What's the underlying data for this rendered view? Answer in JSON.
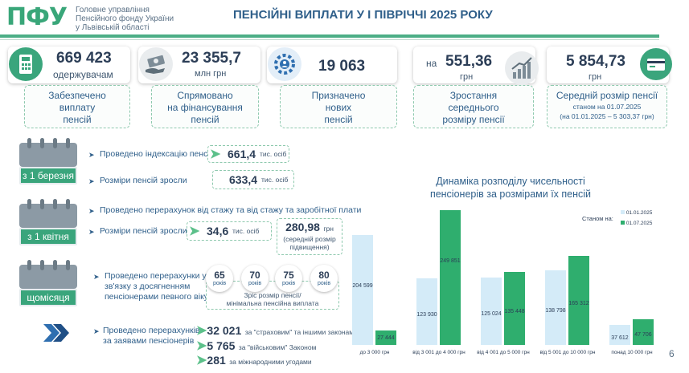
{
  "header": {
    "logo": "ПФУ",
    "org_lines": [
      "Головне управління",
      "Пенсійного фонду України",
      "у Львівській області"
    ],
    "title": "ПЕНСІЙНІ ВИПЛАТИ У І ПІВРІЧЧІ 2025 РОКУ"
  },
  "cards": [
    {
      "value": "669 423",
      "unit": "одержувачам",
      "desc": [
        "Забезпечено",
        "виплату",
        "пенсій"
      ],
      "icon": "calculator-icon"
    },
    {
      "value": "23 355,7",
      "unit": "млн грн",
      "desc": [
        "Спрямовано",
        "на фінансування",
        "пенсій"
      ],
      "icon": "money-hand-icon"
    },
    {
      "value": "19 063",
      "unit": "",
      "desc": [
        "Призначено",
        "нових",
        "пенсій"
      ],
      "icon": "gear-people-icon"
    },
    {
      "prefix": "на",
      "value": "551,36",
      "unit": "грн",
      "desc": [
        "Зростання",
        "середнього",
        "розміру пенсії"
      ],
      "icon": "growth-chart-icon"
    },
    {
      "value": "5 854,73",
      "unit": "грн",
      "desc": [
        "Середній розмір пенсії"
      ],
      "desc_small": [
        "станом на 01.07.2025",
        "(на 01.01.2025 – 5 303,37 грн)"
      ],
      "icon": "wallet-card-icon"
    }
  ],
  "steps": {
    "march": {
      "label": "з 1 березня",
      "line1": "Проведено індексацію пенсій",
      "line1_value": "661,4",
      "line1_unit": "тис. осіб",
      "line2": "Розміри пенсій зросли",
      "line2_value": "633,4",
      "line2_unit": "тис. осіб"
    },
    "april": {
      "label": "з 1 квітня",
      "line1": "Проведено перерахунок  від стажу та від стажу та заробітної плати",
      "line2": "Розміри пенсій зросли",
      "line2_value": "34,6",
      "line2_unit": "тис. осіб",
      "extra_value": "280,98",
      "extra_unit": "грн",
      "extra_note": [
        "(середній розмір",
        "підвищення)"
      ]
    },
    "monthly": {
      "label": "щомісяця",
      "text": [
        "Проведено перерахунки у",
        "зв'язку з досягненням",
        "пенсіонерами певного віку"
      ],
      "ages": [
        "65",
        "70",
        "75",
        "80"
      ],
      "age_unit": "років",
      "ages_note": [
        "Зріс розмір пенсії/",
        "мінімальна пенсійна виплата"
      ]
    },
    "requests": {
      "text": [
        "Проведено перерахунків",
        "за заявами пенсіонерів"
      ],
      "items": [
        {
          "value": "32 021",
          "label": "за \"страховим\" та іншими законами"
        },
        {
          "value": "5 765",
          "label": "за \"військовим\" Законом"
        },
        {
          "value": "281",
          "label": "за міжнародними угодами"
        }
      ]
    }
  },
  "chart_data": {
    "type": "bar",
    "title": "Динаміка розподілу чисельності пенсіонерів за розмірами їх пенсій",
    "legend_title": "Станом на:",
    "categories": [
      "до 3 000 грн",
      "від 3 001 до 4 000 грн",
      "від 4 001 до 5 000 грн",
      "від 5 001 до 10 000 грн",
      "понад 10 000 грн"
    ],
    "series": [
      {
        "name": "01.01.2025",
        "values": [
          204599,
          123930,
          125024,
          138798,
          37612
        ],
        "labels": [
          "204 599",
          "123 930",
          "125 024",
          "138 798",
          "37 612"
        ],
        "color": "#d4ebf8"
      },
      {
        "name": "01.07.2025",
        "values": [
          27444,
          249851,
          135448,
          165312,
          47706
        ],
        "labels": [
          "27 444",
          "249 851",
          "135 448",
          "165 312",
          "47 706"
        ],
        "color": "#2fae6e"
      }
    ],
    "ylim": [
      0,
      250000
    ],
    "legend_position": "top-right"
  },
  "page_number": "6"
}
